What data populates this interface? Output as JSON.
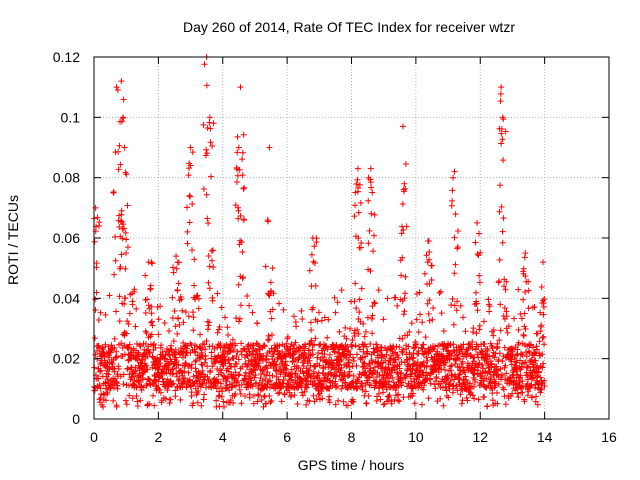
{
  "chart_data": {
    "type": "scatter",
    "title": "Day 260 of 2014, Rate Of TEC Index for receiver wtzr",
    "xlabel": "GPS time / hours",
    "ylabel": "ROTI / TECUs",
    "xlim": [
      0,
      16
    ],
    "ylim": [
      0,
      0.12
    ],
    "xticks": [
      "0",
      "2",
      "4",
      "6",
      "8",
      "10",
      "12",
      "14",
      "16"
    ],
    "yticks": [
      "0",
      "0.02",
      "0.04",
      "0.06",
      "0.08",
      "0.1",
      "0.12"
    ],
    "grid": true,
    "marker": "+",
    "series": [
      {
        "name": "ROTI",
        "color": "#ff0000",
        "baseline_band": [
          0.01,
          0.025
        ],
        "x_range": [
          0,
          14
        ],
        "time_step_hours": 0.005,
        "peaks": [
          {
            "x": 0.05,
            "y": 0.07
          },
          {
            "x": 0.7,
            "y": 0.11
          },
          {
            "x": 0.85,
            "y": 0.112
          },
          {
            "x": 0.9,
            "y": 0.1
          },
          {
            "x": 0.95,
            "y": 0.09
          },
          {
            "x": 1.7,
            "y": 0.052
          },
          {
            "x": 2.55,
            "y": 0.054
          },
          {
            "x": 3.0,
            "y": 0.09
          },
          {
            "x": 3.5,
            "y": 0.12
          },
          {
            "x": 3.6,
            "y": 0.1
          },
          {
            "x": 4.55,
            "y": 0.11
          },
          {
            "x": 4.5,
            "y": 0.09
          },
          {
            "x": 5.45,
            "y": 0.09
          },
          {
            "x": 6.8,
            "y": 0.06
          },
          {
            "x": 8.2,
            "y": 0.083
          },
          {
            "x": 8.6,
            "y": 0.083
          },
          {
            "x": 9.6,
            "y": 0.097
          },
          {
            "x": 10.4,
            "y": 0.059
          },
          {
            "x": 11.2,
            "y": 0.082
          },
          {
            "x": 11.9,
            "y": 0.065
          },
          {
            "x": 12.65,
            "y": 0.11
          },
          {
            "x": 12.7,
            "y": 0.1
          },
          {
            "x": 13.4,
            "y": 0.055
          },
          {
            "x": 13.95,
            "y": 0.052
          }
        ]
      }
    ]
  }
}
